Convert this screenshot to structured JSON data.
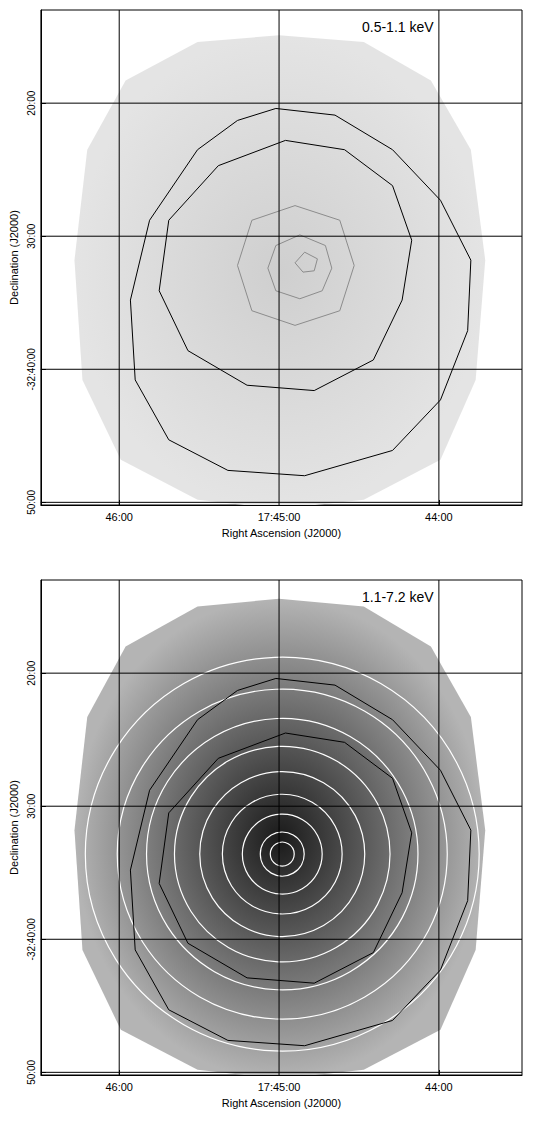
{
  "chart_data": [
    {
      "type": "contour",
      "title": "0.5-1.1 keV",
      "x_label": "Right Ascension (J2000)",
      "y_label": "Declination (J2000)",
      "xlim": [
        46.49,
        43.48
      ],
      "xticks": [
        {
          "value": 46,
          "label": "46:00"
        },
        {
          "value": 45,
          "label": "17:45:00"
        },
        {
          "value": 44,
          "label": "44:00"
        }
      ],
      "ylim": [
        -50.2,
        -13.0
      ],
      "yticks": [
        {
          "value": -20,
          "label": "20:00"
        },
        {
          "value": -30,
          "label": "30:00"
        },
        {
          "value": -40,
          "label": "-32:40:00"
        },
        {
          "value": -50,
          "label": "50:00"
        }
      ],
      "grid": true,
      "field": {
        "colors": [
          "#cfcfcf",
          "#e4e4e4"
        ],
        "x": [
          45.0,
          44.47,
          44.05,
          43.8,
          43.71,
          43.77,
          43.99,
          44.47,
          45.0,
          45.51,
          45.99,
          46.23,
          46.28,
          46.2,
          45.96,
          45.51
        ],
        "y": [
          -14.9,
          -15.4,
          -18.3,
          -23.5,
          -31.8,
          -40.8,
          -46.8,
          -49.8,
          -50.5,
          -49.8,
          -46.8,
          -40.8,
          -31.8,
          -23.5,
          -18.3,
          -15.4
        ]
      },
      "contours": [
        {
          "color": "#000000",
          "x": [
            45.02,
            44.65,
            44.29,
            43.99,
            43.8,
            43.82,
            43.99,
            44.29,
            44.84,
            45.32,
            45.69,
            45.9,
            45.93,
            45.81,
            45.51,
            45.26
          ],
          "y": [
            -20.4,
            -20.9,
            -23.5,
            -27.3,
            -31.8,
            -37.1,
            -42.3,
            -46.1,
            -48.0,
            -47.6,
            -45.3,
            -40.8,
            -34.8,
            -28.8,
            -23.5,
            -21.3
          ]
        },
        {
          "color": "#000000",
          "x": [
            44.96,
            44.59,
            44.29,
            44.17,
            44.23,
            44.41,
            44.78,
            45.2,
            45.57,
            45.75,
            45.69,
            45.38
          ],
          "y": [
            -22.8,
            -23.5,
            -26.2,
            -30.3,
            -34.8,
            -39.3,
            -41.6,
            -41.2,
            -38.6,
            -34.1,
            -28.8,
            -24.7
          ]
        },
        {
          "color": "#8c8c8c",
          "x": [
            44.9,
            44.62,
            44.53,
            44.62,
            44.9,
            45.17,
            45.26,
            45.17
          ],
          "y": [
            -27.7,
            -28.8,
            -32.2,
            -35.6,
            -36.7,
            -35.6,
            -32.2,
            -28.8
          ]
        },
        {
          "color": "#8c8c8c",
          "x": [
            44.87,
            44.71,
            44.67,
            44.73,
            44.87,
            45.02,
            45.07,
            45.02
          ],
          "y": [
            -29.9,
            -30.7,
            -32.4,
            -34.1,
            -34.7,
            -34.1,
            -32.4,
            -30.7
          ]
        },
        {
          "color": "#8c8c8c",
          "x": [
            44.84,
            44.76,
            44.78,
            44.85,
            44.9
          ],
          "y": [
            -31.2,
            -31.7,
            -32.6,
            -32.7,
            -32.0
          ]
        }
      ]
    },
    {
      "type": "contour",
      "title": "1.1-7.2 keV",
      "x_label": "Right Ascension (J2000)",
      "y_label": "Declination (J2000)",
      "xlim": [
        46.49,
        43.48
      ],
      "xticks": [
        {
          "value": 46,
          "label": "46:00"
        },
        {
          "value": 45,
          "label": "17:45:00"
        },
        {
          "value": 44,
          "label": "44:00"
        }
      ],
      "ylim": [
        -50.2,
        -13.0
      ],
      "yticks": [
        {
          "value": -20,
          "label": "20:00"
        },
        {
          "value": -30,
          "label": "30:00"
        },
        {
          "value": -40,
          "label": "-32:40:00"
        },
        {
          "value": -50,
          "label": "50:00"
        }
      ],
      "grid": true,
      "field": {
        "colors": [
          "#1a1a1a",
          "#b4b4b4"
        ],
        "x": [
          45.0,
          44.47,
          44.05,
          43.8,
          43.71,
          43.77,
          43.99,
          44.47,
          45.0,
          45.51,
          45.99,
          46.23,
          46.28,
          46.2,
          45.96,
          45.51
        ],
        "y": [
          -14.4,
          -15.0,
          -18.0,
          -23.3,
          -31.8,
          -40.8,
          -46.8,
          -49.8,
          -50.5,
          -49.8,
          -46.8,
          -40.8,
          -31.8,
          -23.3,
          -18.0,
          -15.0
        ]
      },
      "contours": [
        {
          "color": "#000000",
          "x": [
            45.02,
            44.65,
            44.29,
            43.99,
            43.8,
            43.82,
            43.99,
            44.29,
            44.84,
            45.32,
            45.69,
            45.9,
            45.93,
            45.81,
            45.51,
            45.26
          ],
          "y": [
            -20.4,
            -20.9,
            -23.5,
            -27.3,
            -31.8,
            -37.1,
            -42.3,
            -46.1,
            -48.0,
            -47.6,
            -45.3,
            -40.8,
            -34.8,
            -28.8,
            -23.5,
            -21.3
          ]
        },
        {
          "color": "#000000",
          "x": [
            44.96,
            44.59,
            44.29,
            44.17,
            44.23,
            44.41,
            44.78,
            45.2,
            45.57,
            45.75,
            45.69,
            45.38
          ],
          "y": [
            -24.5,
            -25.2,
            -27.9,
            -32.0,
            -36.5,
            -41.0,
            -43.3,
            -42.9,
            -40.3,
            -35.8,
            -30.5,
            -26.4
          ]
        }
      ],
      "annuli": {
        "color": "#ffffff",
        "x": 44.98,
        "y": -33.6,
        "radii": [
          0.9,
          1.65,
          3.0,
          4.5,
          6.2,
          8.1,
          10.2,
          12.4,
          14.8
        ]
      }
    }
  ]
}
